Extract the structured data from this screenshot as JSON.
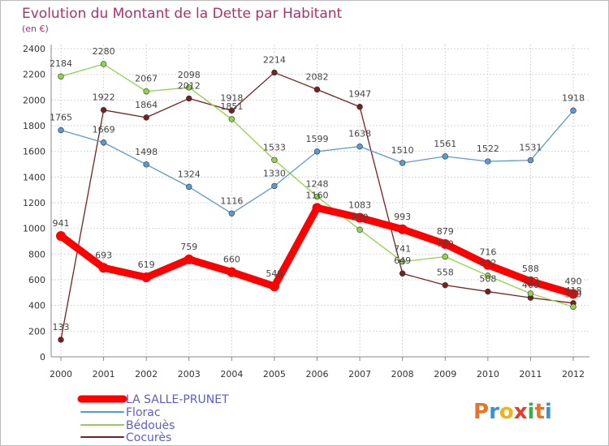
{
  "chart_data": {
    "type": "line",
    "title": "Evolution du Montant de la Dette par Habitant",
    "subtitle": "(en €)",
    "categories": [
      "2000",
      "2001",
      "2002",
      "2003",
      "2004",
      "2005",
      "2006",
      "2007",
      "2008",
      "2009",
      "2010",
      "2011",
      "2012"
    ],
    "ylim": [
      0,
      2400
    ],
    "yticks": [
      0,
      200,
      400,
      600,
      800,
      1000,
      1200,
      1400,
      1600,
      1800,
      2000,
      2200,
      2400
    ],
    "grid": true,
    "legend_position": "bottom-left",
    "series": [
      {
        "name": "LA SALLE-PRUNET",
        "color": "#ff0000",
        "values": [
          941,
          693,
          619,
          759,
          660,
          549,
          1160,
          1083,
          993,
          879,
          716,
          588,
          490
        ]
      },
      {
        "name": "Florac",
        "color": "#5b9bd5",
        "values": [
          1765,
          1669,
          1498,
          1324,
          1116,
          1330,
          1599,
          1638,
          1510,
          1561,
          1522,
          1531,
          1918
        ]
      },
      {
        "name": "Bédouès",
        "color": "#8fd44a",
        "values": [
          2184,
          2280,
          2067,
          2098,
          1851,
          1533,
          1248,
          990,
          741,
          780,
          632,
          493,
          389
        ]
      },
      {
        "name": "Cocurès",
        "color": "#7a1f1f",
        "values": [
          133,
          1922,
          1864,
          2012,
          1918,
          2214,
          2082,
          1947,
          649,
          558,
          508,
          460,
          418
        ]
      }
    ]
  },
  "logo": {
    "text": "Proxiti"
  }
}
